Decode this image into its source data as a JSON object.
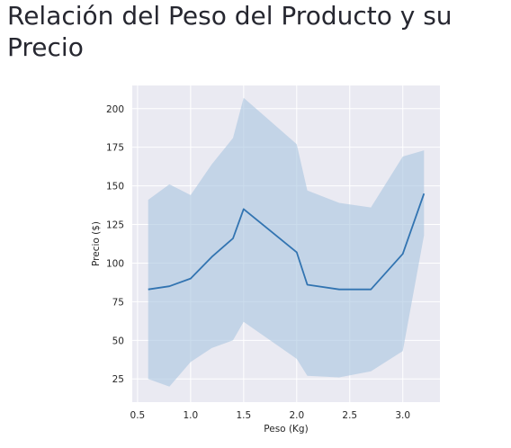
{
  "page": {
    "title": "Relación del Peso del Producto y su Precio"
  },
  "chart_data": {
    "type": "line",
    "title": "",
    "xlabel": "Peso (Kg)",
    "ylabel": "Precio ($)",
    "xlim": [
      0.45,
      3.35
    ],
    "ylim": [
      10,
      215
    ],
    "xticks": [
      0.5,
      1.0,
      1.5,
      2.0,
      2.5,
      3.0
    ],
    "xtick_labels": [
      "0.5",
      "1.0",
      "1.5",
      "2.0",
      "2.5",
      "3.0"
    ],
    "yticks": [
      25,
      50,
      75,
      100,
      125,
      150,
      175,
      200
    ],
    "ytick_labels": [
      "25",
      "50",
      "75",
      "100",
      "125",
      "150",
      "175",
      "200"
    ],
    "grid": true,
    "background_color": "#eaeaf2",
    "line_color": "#3274b1",
    "band_color": "#a8c4e0",
    "series": [
      {
        "x": [
          0.6,
          0.8,
          1.0,
          1.2,
          1.4,
          1.5,
          2.0,
          2.1,
          2.4,
          2.7,
          3.0,
          3.2
        ],
        "values": [
          83,
          85,
          90,
          104,
          116,
          135,
          107,
          86,
          83,
          83,
          106,
          145
        ],
        "ci_low": [
          25,
          20,
          36,
          45,
          50,
          62,
          38,
          27,
          26,
          30,
          43,
          118
        ],
        "ci_high": [
          141,
          151,
          144,
          164,
          181,
          207,
          177,
          147,
          139,
          136,
          169,
          173
        ]
      }
    ]
  }
}
